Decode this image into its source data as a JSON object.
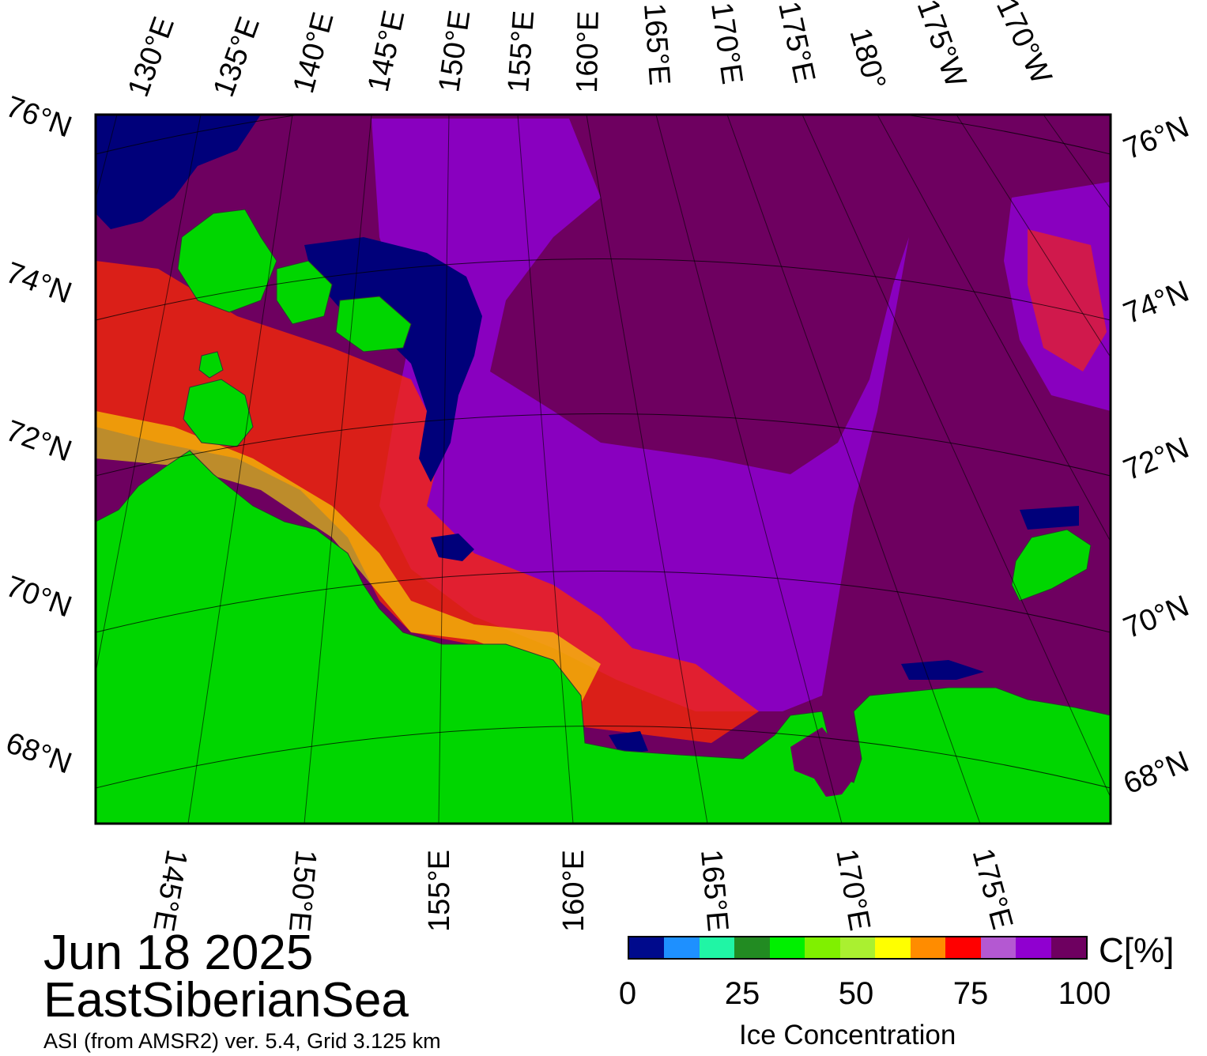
{
  "map": {
    "date": "Jun 18 2025",
    "region": "EastSiberianSea",
    "source": "ASI (from AMSR2) ver. 5.4,  Grid 3.125 km",
    "top_lon_labels": [
      "130°E",
      "135°E",
      "140°E",
      "145°E",
      "150°E",
      "155°E",
      "160°E",
      "165°E",
      "170°E",
      "175°E",
      "180°",
      "175°W",
      "170°W"
    ],
    "bottom_lon_labels": [
      "145°E",
      "150°E",
      "155°E",
      "160°E",
      "165°E",
      "170°E",
      "175°E"
    ],
    "lat_labels": [
      "76°N",
      "74°N",
      "72°N",
      "70°N",
      "68°N"
    ],
    "colors": {
      "land": "#00d600",
      "high_ice": "#6e0060",
      "ice_purple": "#8e00d0",
      "ice_light_purple": "#b050d0",
      "open_water": "#00007a"
    }
  },
  "colorbar": {
    "title": "Ice Concentration",
    "unit": "C[%]",
    "ticks": [
      "0",
      "25",
      "50",
      "75",
      "100"
    ],
    "colors": [
      "#000a8c",
      "#1e90ff",
      "#20f5a5",
      "#228b22",
      "#00f000",
      "#80f000",
      "#aaf030",
      "#ffff00",
      "#ff8c00",
      "#ff0000",
      "#b458d2",
      "#9000d0",
      "#6e0060"
    ]
  }
}
